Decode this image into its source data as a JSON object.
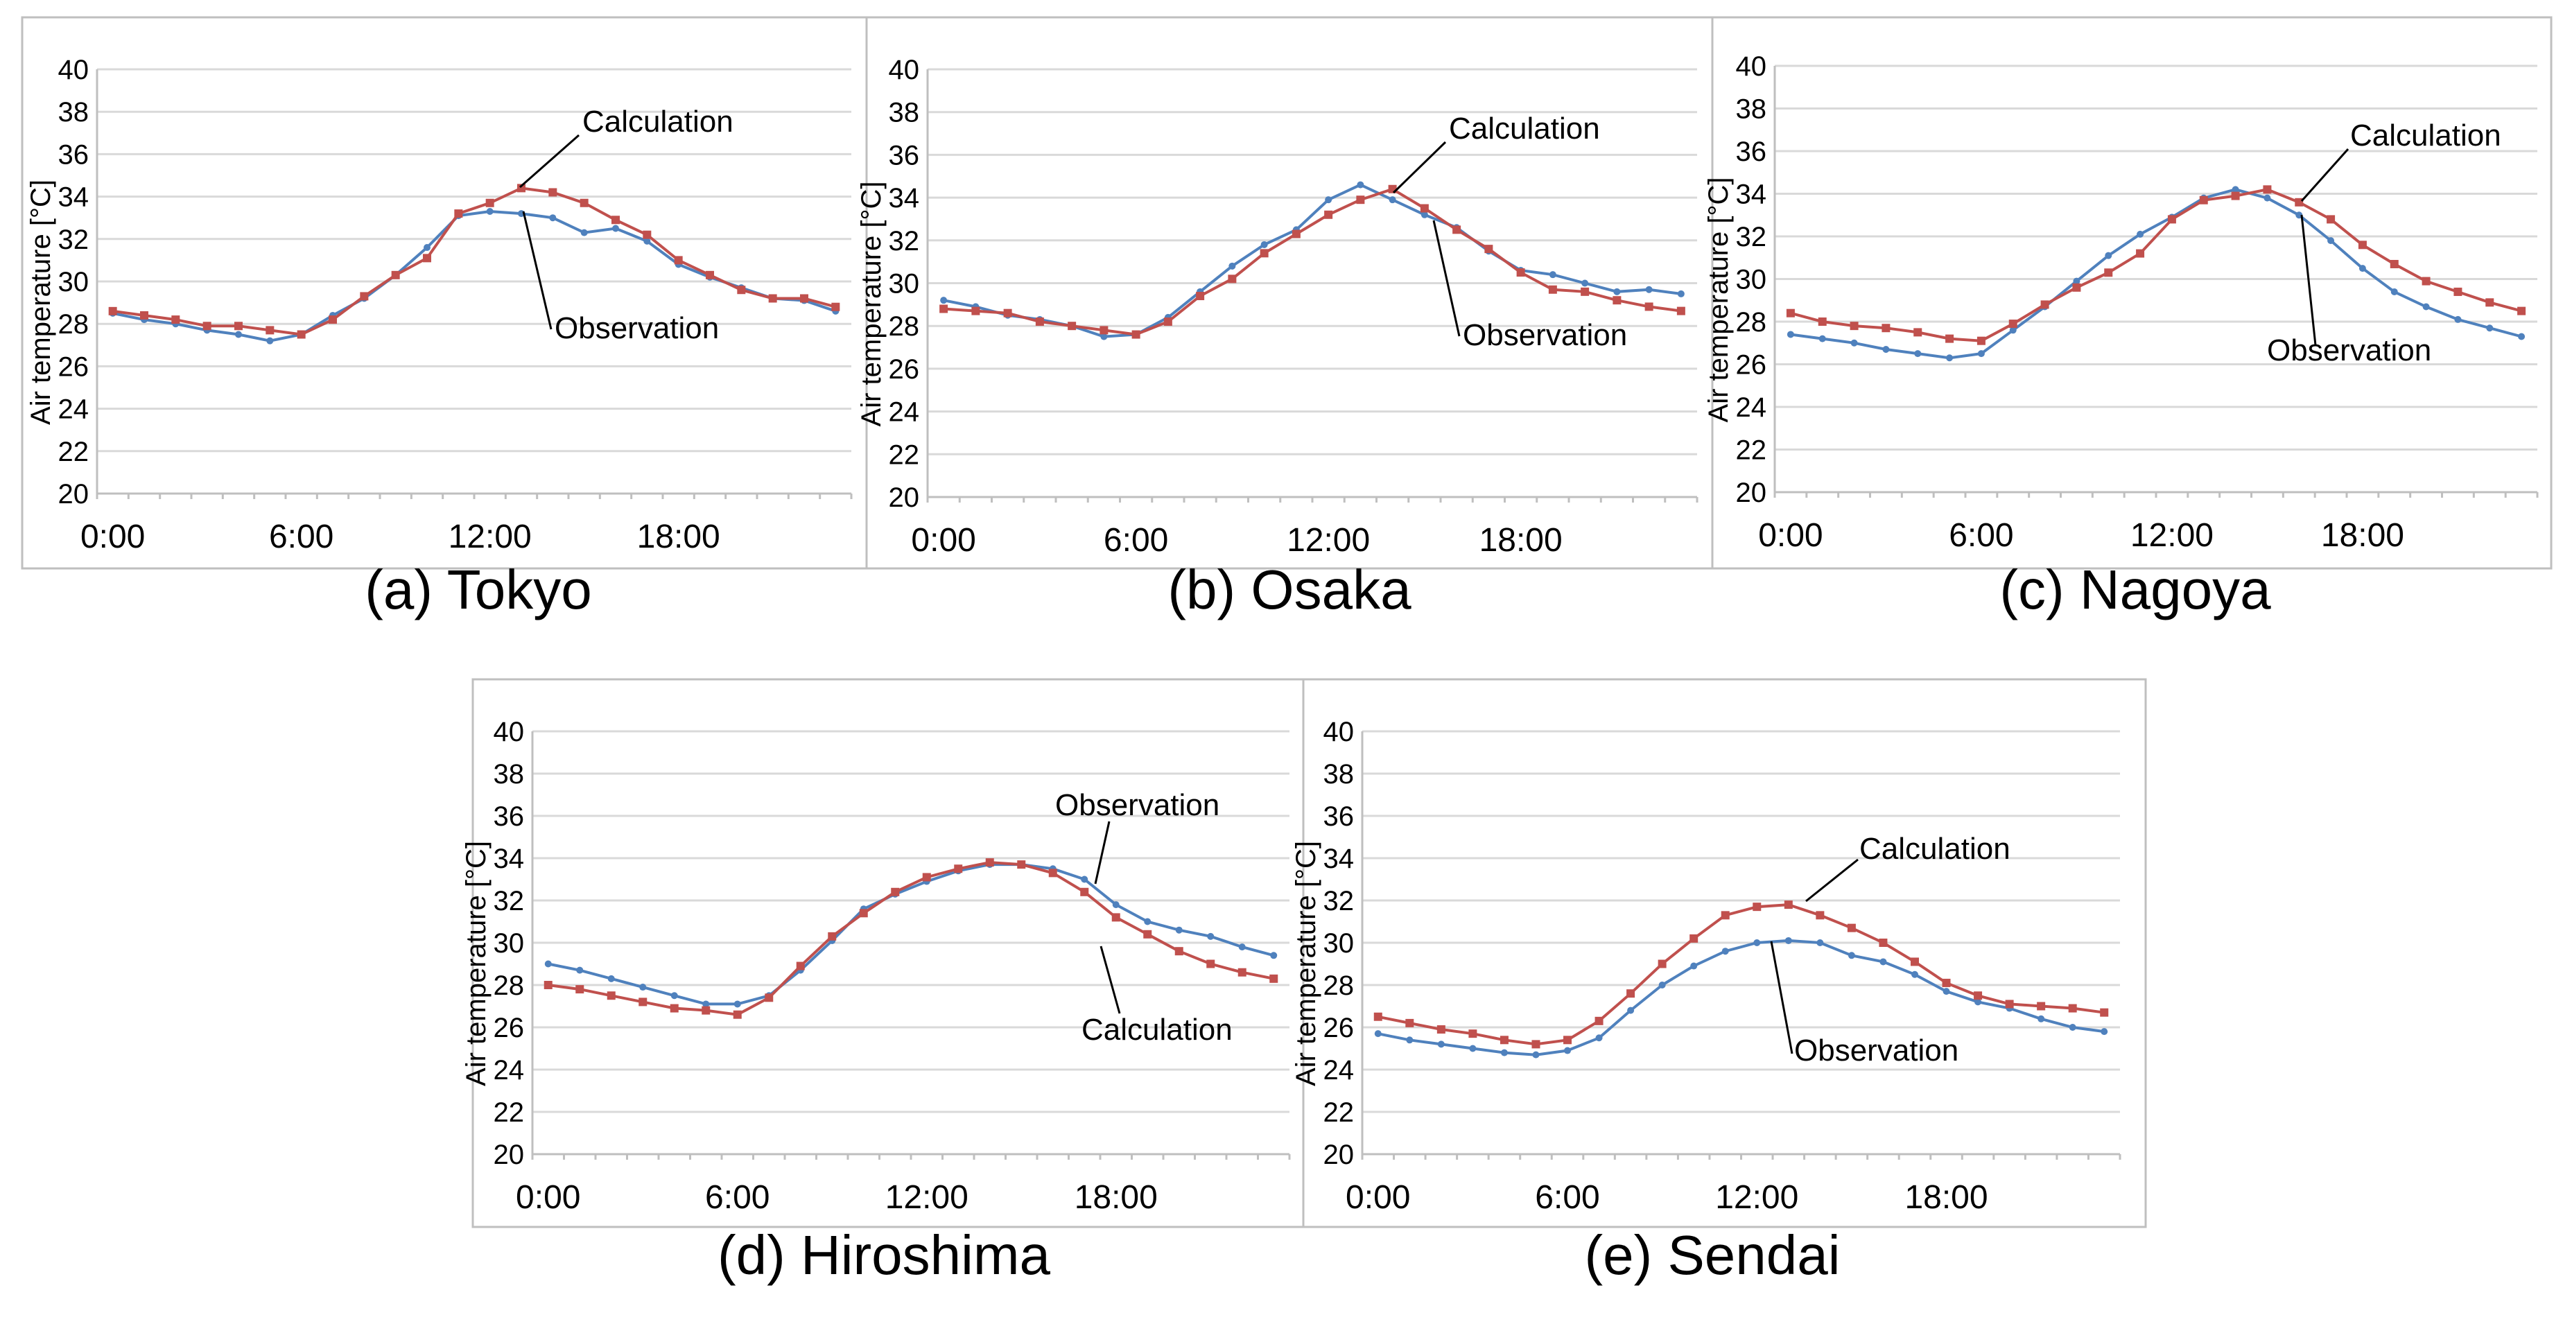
{
  "colors": {
    "calculation": "#C0504D",
    "observation": "#4F81BD",
    "grid": "#D9D9D9",
    "frame": "#BFBFBF",
    "text": "#000000"
  },
  "chart_data": [
    {
      "type": "line",
      "caption": "(a) Tokyo",
      "ylabel": "Air temperature [°C]",
      "ylim": [
        20,
        40
      ],
      "yticks": [
        "20",
        "22",
        "24",
        "26",
        "28",
        "30",
        "32",
        "34",
        "36",
        "38",
        "40"
      ],
      "xtick_labels": [
        "0:00",
        "6:00",
        "12:00",
        "18:00"
      ],
      "x": [
        0,
        1,
        2,
        3,
        4,
        5,
        6,
        7,
        8,
        9,
        10,
        11,
        12,
        13,
        14,
        15,
        16,
        17,
        18,
        19,
        20,
        21,
        22,
        23
      ],
      "series": [
        {
          "name": "Calculation",
          "values": [
            28.6,
            28.4,
            28.2,
            27.9,
            27.9,
            27.7,
            27.5,
            28.2,
            29.3,
            30.3,
            31.1,
            33.2,
            33.7,
            34.4,
            34.2,
            33.7,
            32.9,
            32.2,
            31.0,
            30.3,
            29.6,
            29.2,
            29.2,
            28.8
          ]
        },
        {
          "name": "Observation",
          "values": [
            28.5,
            28.2,
            28.0,
            27.7,
            27.5,
            27.2,
            27.5,
            28.4,
            29.2,
            30.3,
            31.6,
            33.1,
            33.3,
            33.2,
            33.0,
            32.3,
            32.5,
            31.9,
            30.8,
            30.2,
            29.7,
            29.2,
            29.1,
            28.6
          ]
        }
      ],
      "annotations": [
        "Calculation",
        "Observation"
      ]
    },
    {
      "type": "line",
      "caption": "(b) Osaka",
      "ylabel": "Air temperature [°C]",
      "ylim": [
        20,
        40
      ],
      "yticks": [
        "20",
        "22",
        "24",
        "26",
        "28",
        "30",
        "32",
        "34",
        "36",
        "38",
        "40"
      ],
      "xtick_labels": [
        "0:00",
        "6:00",
        "12:00",
        "18:00"
      ],
      "x": [
        0,
        1,
        2,
        3,
        4,
        5,
        6,
        7,
        8,
        9,
        10,
        11,
        12,
        13,
        14,
        15,
        16,
        17,
        18,
        19,
        20,
        21,
        22,
        23
      ],
      "series": [
        {
          "name": "Calculation",
          "values": [
            28.8,
            28.7,
            28.6,
            28.2,
            28.0,
            27.8,
            27.6,
            28.2,
            29.4,
            30.2,
            31.4,
            32.3,
            33.2,
            33.9,
            34.4,
            33.5,
            32.5,
            31.6,
            30.5,
            29.7,
            29.6,
            29.2,
            28.9,
            28.7
          ]
        },
        {
          "name": "Observation",
          "values": [
            29.2,
            28.9,
            28.5,
            28.3,
            28.0,
            27.5,
            27.6,
            28.4,
            29.6,
            30.8,
            31.8,
            32.5,
            33.9,
            34.6,
            33.9,
            33.2,
            32.6,
            31.5,
            30.6,
            30.4,
            30.0,
            29.6,
            29.7,
            29.5
          ]
        }
      ],
      "annotations": [
        "Calculation",
        "Observation"
      ]
    },
    {
      "type": "line",
      "caption": "(c) Nagoya",
      "ylabel": "Air temperature [°C]",
      "ylim": [
        20,
        40
      ],
      "yticks": [
        "20",
        "22",
        "24",
        "26",
        "28",
        "30",
        "32",
        "34",
        "36",
        "38",
        "40"
      ],
      "xtick_labels": [
        "0:00",
        "6:00",
        "12:00",
        "18:00"
      ],
      "x": [
        0,
        1,
        2,
        3,
        4,
        5,
        6,
        7,
        8,
        9,
        10,
        11,
        12,
        13,
        14,
        15,
        16,
        17,
        18,
        19,
        20,
        21,
        22,
        23
      ],
      "series": [
        {
          "name": "Calculation",
          "values": [
            28.4,
            28.0,
            27.8,
            27.7,
            27.5,
            27.2,
            27.1,
            27.9,
            28.8,
            29.6,
            30.3,
            31.2,
            32.8,
            33.7,
            33.9,
            34.2,
            33.6,
            32.8,
            31.6,
            30.7,
            29.9,
            29.4,
            28.9,
            28.5
          ]
        },
        {
          "name": "Observation",
          "values": [
            27.4,
            27.2,
            27.0,
            26.7,
            26.5,
            26.3,
            26.5,
            27.6,
            28.7,
            29.9,
            31.1,
            32.1,
            32.9,
            33.8,
            34.2,
            33.8,
            33.0,
            31.8,
            30.5,
            29.4,
            28.7,
            28.1,
            27.7,
            27.3
          ]
        }
      ],
      "annotations": [
        "Calculation",
        "Observation"
      ]
    },
    {
      "type": "line",
      "caption": "(d) Hiroshima",
      "ylabel": "Air temperature [°C]",
      "ylim": [
        20,
        40
      ],
      "yticks": [
        "20",
        "22",
        "24",
        "26",
        "28",
        "30",
        "32",
        "34",
        "36",
        "38",
        "40"
      ],
      "xtick_labels": [
        "0:00",
        "6:00",
        "12:00",
        "18:00"
      ],
      "x": [
        0,
        1,
        2,
        3,
        4,
        5,
        6,
        7,
        8,
        9,
        10,
        11,
        12,
        13,
        14,
        15,
        16,
        17,
        18,
        19,
        20,
        21,
        22,
        23
      ],
      "series": [
        {
          "name": "Calculation",
          "values": [
            28.0,
            27.8,
            27.5,
            27.2,
            26.9,
            26.8,
            26.6,
            27.4,
            28.9,
            30.3,
            31.4,
            32.4,
            33.1,
            33.5,
            33.8,
            33.7,
            33.3,
            32.4,
            31.2,
            30.4,
            29.6,
            29.0,
            28.6,
            28.3
          ]
        },
        {
          "name": "Observation",
          "values": [
            29.0,
            28.7,
            28.3,
            27.9,
            27.5,
            27.1,
            27.1,
            27.5,
            28.7,
            30.1,
            31.6,
            32.3,
            32.9,
            33.4,
            33.7,
            33.7,
            33.5,
            33.0,
            31.8,
            31.0,
            30.6,
            30.3,
            29.8,
            29.4
          ]
        }
      ],
      "annotations": [
        "Observation",
        "Calculation"
      ]
    },
    {
      "type": "line",
      "caption": "(e) Sendai",
      "ylabel": "Air temperature [°C]",
      "ylim": [
        20,
        40
      ],
      "yticks": [
        "20",
        "22",
        "24",
        "26",
        "28",
        "30",
        "32",
        "34",
        "36",
        "38",
        "40"
      ],
      "xtick_labels": [
        "0:00",
        "6:00",
        "12:00",
        "18:00"
      ],
      "x": [
        0,
        1,
        2,
        3,
        4,
        5,
        6,
        7,
        8,
        9,
        10,
        11,
        12,
        13,
        14,
        15,
        16,
        17,
        18,
        19,
        20,
        21,
        22,
        23
      ],
      "series": [
        {
          "name": "Calculation",
          "values": [
            26.5,
            26.2,
            25.9,
            25.7,
            25.4,
            25.2,
            25.4,
            26.3,
            27.6,
            29.0,
            30.2,
            31.3,
            31.7,
            31.8,
            31.3,
            30.7,
            30.0,
            29.1,
            28.1,
            27.5,
            27.1,
            27.0,
            26.9,
            26.7
          ]
        },
        {
          "name": "Observation",
          "values": [
            25.7,
            25.4,
            25.2,
            25.0,
            24.8,
            24.7,
            24.9,
            25.5,
            26.8,
            28.0,
            28.9,
            29.6,
            30.0,
            30.1,
            30.0,
            29.4,
            29.1,
            28.5,
            27.7,
            27.2,
            26.9,
            26.4,
            26.0,
            25.8
          ]
        }
      ],
      "annotations": [
        "Calculation",
        "Observation"
      ]
    }
  ]
}
